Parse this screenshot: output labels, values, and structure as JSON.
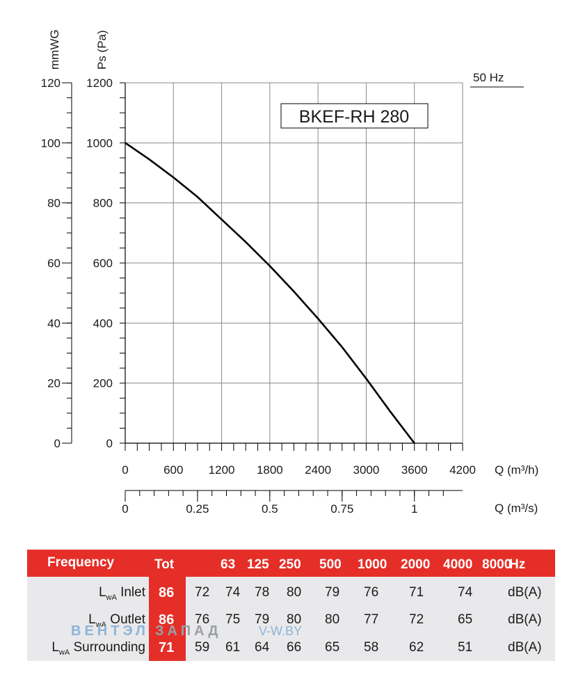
{
  "chart_data": {
    "type": "line",
    "title": "BKEF-RH 280",
    "frequency_label": "50 Hz",
    "left_axis_label": "mmWG",
    "ylabel": "Ps (Pa)",
    "xlabel": "Q (m³/h)",
    "x2label": "Q (m³/s)",
    "xlim": [
      0,
      4200
    ],
    "ylim": [
      0,
      1200
    ],
    "x_ticks": [
      "0",
      "600",
      "1200",
      "1800",
      "2400",
      "3000",
      "3600",
      "4200"
    ],
    "y_ticks": [
      "0",
      "200",
      "400",
      "600",
      "800",
      "1000",
      "1200"
    ],
    "mmwg_ticks": [
      "0",
      "20",
      "40",
      "60",
      "80",
      "100",
      "120"
    ],
    "x2_ticks": [
      {
        "label": "0",
        "value": 0
      },
      {
        "label": "0.25",
        "value": 0.25
      },
      {
        "label": "0.5",
        "value": 0.5
      },
      {
        "label": "0.75",
        "value": 0.75
      },
      {
        "label": "1",
        "value": 1
      }
    ],
    "grid": true,
    "series": [
      {
        "x": [
          0,
          300,
          600,
          900,
          1200,
          1500,
          1800,
          2100,
          2400,
          2700,
          3000,
          3300,
          3600
        ],
        "y": [
          1000,
          945,
          885,
          820,
          745,
          670,
          590,
          505,
          415,
          320,
          215,
          105,
          0
        ]
      }
    ]
  },
  "sound_table": {
    "header": {
      "frequency": "Frequency",
      "tot": "Tot",
      "bands": [
        "63",
        "125",
        "250",
        "500",
        "1000",
        "2000",
        "4000",
        "8000"
      ],
      "unit": "Hz"
    },
    "rows": [
      {
        "label_pre": "L",
        "label_sub": "wA",
        "label_post": " Inlet",
        "tot": "86",
        "values": [
          "72",
          "74",
          "78",
          "80",
          "79",
          "76",
          "71",
          "74"
        ],
        "unit": "dB(A)"
      },
      {
        "label_pre": "L",
        "label_sub": "wA",
        "label_post": " Outlet",
        "tot": "86",
        "values": [
          "76",
          "75",
          "79",
          "80",
          "80",
          "77",
          "72",
          "65"
        ],
        "unit": "dB(A)"
      },
      {
        "label_pre": "L",
        "label_sub": "wA",
        "label_post": " Surrounding",
        "tot": "71",
        "values": [
          "59",
          "61",
          "64",
          "66",
          "65",
          "58",
          "62",
          "51"
        ],
        "unit": "dB(A)"
      }
    ]
  },
  "watermark": {
    "part1": "ВЕНТЭЛ",
    "part2": "ЗАПАД",
    "part3": "V-W.BY"
  }
}
